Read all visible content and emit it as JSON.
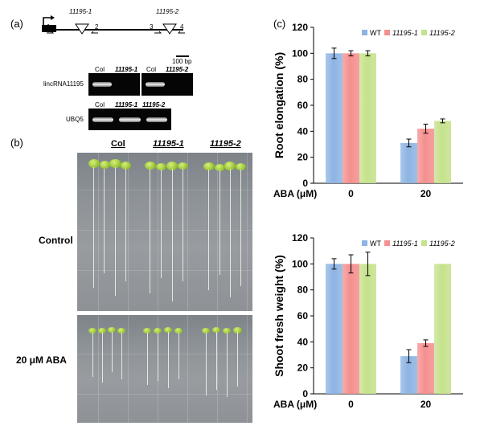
{
  "panel_a": {
    "label": "(a)",
    "exon_labels": [
      "11195-1",
      "11195-2"
    ],
    "primer_labels": [
      "1",
      "2",
      "3",
      "4"
    ],
    "scale_label": "100 bp",
    "gel_rows": [
      {
        "name": "lincRNA11195",
        "lanes": [
          "Col",
          "11195-1",
          "Col",
          "11195-2"
        ]
      },
      {
        "name": "UBQ5",
        "lanes": [
          "Col",
          "11195-1",
          "11195-2"
        ]
      }
    ]
  },
  "panel_b": {
    "label": "(b)",
    "genotypes": [
      "Col",
      "11195-1",
      "11195-2"
    ],
    "conditions": [
      "Control",
      "20 μM ABA"
    ]
  },
  "panel_c": {
    "label": "(c)"
  },
  "chart_data": [
    {
      "type": "bar",
      "ylabel": "Root elongation (%)",
      "xlabel": "ABA (μM)",
      "categories": [
        "0",
        "20"
      ],
      "ylim": [
        0,
        120
      ],
      "yticks": [
        0,
        20,
        40,
        60,
        80,
        100,
        120
      ],
      "legend": "top",
      "series": [
        {
          "name": "WT",
          "color": "#8db4e3",
          "values": [
            100,
            31
          ],
          "errors": [
            4,
            3
          ]
        },
        {
          "name": "11195-1",
          "color": "#f4908f",
          "values": [
            100,
            42
          ],
          "errors": [
            2,
            3.5
          ]
        },
        {
          "name": "11195-2",
          "color": "#c5e28c",
          "values": [
            100,
            48
          ],
          "errors": [
            2,
            1.5
          ]
        }
      ]
    },
    {
      "type": "bar",
      "ylabel": "Shoot fresh weight (%)",
      "xlabel": "ABA (μM)",
      "categories": [
        "0",
        "20"
      ],
      "ylim": [
        0,
        120
      ],
      "yticks": [
        0,
        20,
        40,
        60,
        80,
        100,
        120
      ],
      "legend": "top",
      "series": [
        {
          "name": "WT",
          "color": "#8db4e3",
          "values": [
            100,
            29
          ],
          "errors": [
            4,
            5
          ]
        },
        {
          "name": "11195-1",
          "color": "#f4908f",
          "values": [
            100,
            39
          ],
          "errors": [
            7,
            2.5
          ]
        },
        {
          "name": "11195-2",
          "color": "#c5e28c",
          "values": [
            100,
            100
          ],
          "errors": [
            9,
            0
          ]
        }
      ]
    }
  ]
}
